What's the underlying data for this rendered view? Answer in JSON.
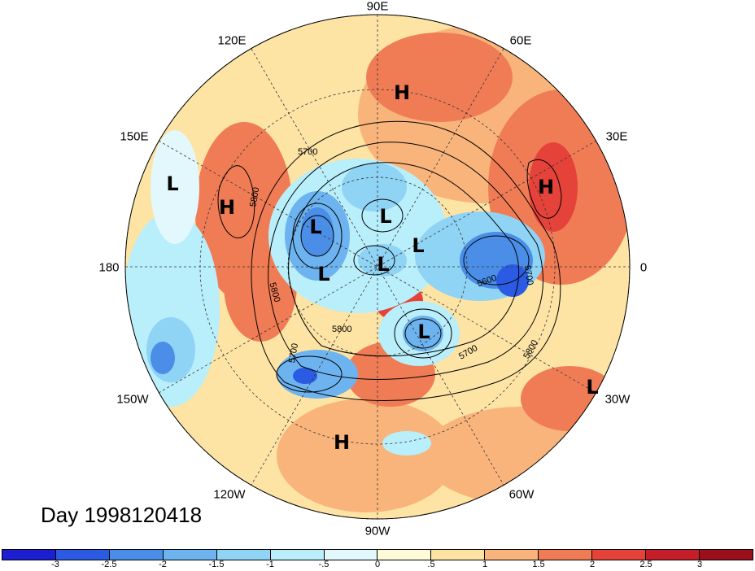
{
  "title": "Day 1998120418",
  "longitude_labels": [
    "90E",
    "120E",
    "60E",
    "150E",
    "30E",
    "180",
    "0",
    "150W",
    "30W",
    "120W",
    "60W",
    "90W"
  ],
  "contour_labels": [
    "5700",
    "5800",
    "5800",
    "5600",
    "5700",
    "5700",
    "5800",
    "5700",
    "5800"
  ],
  "pressure_centers": [
    "H",
    "H",
    "H",
    "H",
    "L",
    "L",
    "L",
    "L",
    "L",
    "L",
    "L",
    "L"
  ],
  "colorbar": {
    "ticks": [
      "-3",
      "-2.5",
      "-2",
      "-1.5",
      "-1",
      "-.5",
      "0",
      ".5",
      "1",
      "1.5",
      "2",
      "2.5",
      "3"
    ],
    "colors": [
      "#1b1fcf",
      "#2b5be3",
      "#4a8ee8",
      "#6db3ef",
      "#8fd3f5",
      "#b9eefb",
      "#e2f8fd",
      "#fffbd9",
      "#fde3a4",
      "#f9b47b",
      "#f07c55",
      "#e5423a",
      "#c41e2b",
      "#9b0e1c"
    ]
  }
}
